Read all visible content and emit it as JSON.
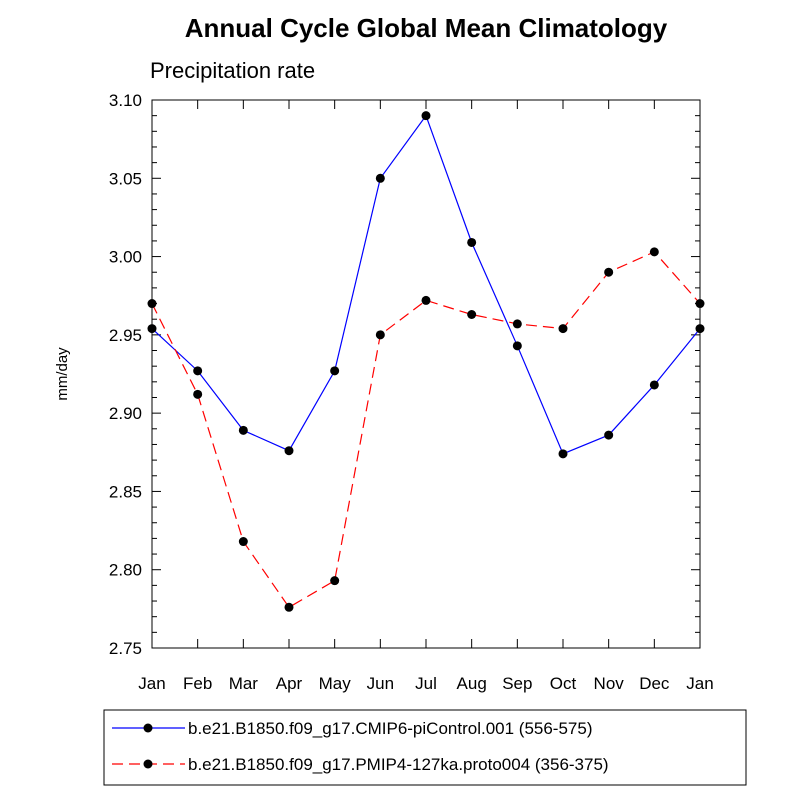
{
  "chart_data": {
    "type": "line",
    "title": "Annual Cycle Global Mean Climatology",
    "subtitle": "Precipitation rate",
    "ylabel": "mm/day",
    "xlabel": "",
    "ylim": [
      2.75,
      3.1
    ],
    "yticks": [
      "2.75",
      "2.80",
      "2.85",
      "2.90",
      "2.95",
      "3.00",
      "3.05",
      "3.10"
    ],
    "categories": [
      "Jan",
      "Feb",
      "Mar",
      "Apr",
      "May",
      "Jun",
      "Jul",
      "Aug",
      "Sep",
      "Oct",
      "Nov",
      "Dec",
      "Jan"
    ],
    "series": [
      {
        "name": "b.e21.B1850.f09_g17.CMIP6-piControl.001 (556-575)",
        "color": "#0000ff",
        "dash": "solid",
        "values": [
          2.954,
          2.927,
          2.889,
          2.876,
          2.927,
          3.05,
          3.09,
          3.009,
          2.943,
          2.874,
          2.886,
          2.918,
          2.954
        ]
      },
      {
        "name": "b.e21.B1850.f09_g17.PMIP4-127ka.proto004 (356-375)",
        "color": "#ff0000",
        "dash": "dashed",
        "values": [
          2.97,
          2.912,
          2.818,
          2.776,
          2.793,
          2.95,
          2.972,
          2.963,
          2.957,
          2.954,
          2.99,
          3.003,
          2.97
        ]
      }
    ]
  }
}
